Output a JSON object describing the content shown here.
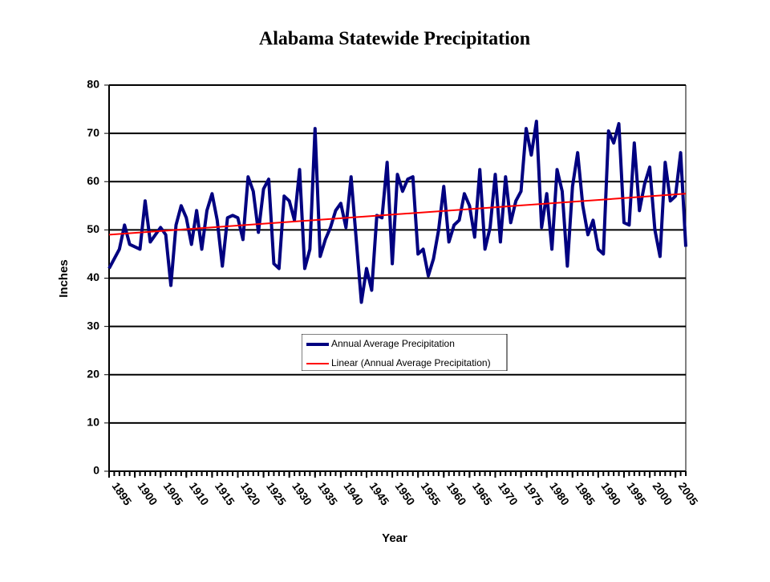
{
  "chart_data": {
    "type": "line",
    "title": "Alabama Statewide Precipitation",
    "x_label": "Year",
    "y_label": "Inches",
    "xlim": [
      1895,
      2007
    ],
    "xticks": [
      1895,
      1900,
      1905,
      1910,
      1915,
      1920,
      1925,
      1930,
      1935,
      1940,
      1945,
      1950,
      1955,
      1960,
      1965,
      1970,
      1975,
      1980,
      1985,
      1990,
      1995,
      2000,
      2005
    ],
    "ylim": [
      0,
      80
    ],
    "yticks": [
      0,
      10,
      20,
      30,
      40,
      50,
      60,
      70,
      80
    ],
    "grid": true,
    "series": [
      {
        "name": "Annual Average Precipitation",
        "color": "#000080",
        "x": [
          1895,
          1896,
          1897,
          1898,
          1899,
          1900,
          1901,
          1902,
          1903,
          1904,
          1905,
          1906,
          1907,
          1908,
          1909,
          1910,
          1911,
          1912,
          1913,
          1914,
          1915,
          1916,
          1917,
          1918,
          1919,
          1920,
          1921,
          1922,
          1923,
          1924,
          1925,
          1926,
          1927,
          1928,
          1929,
          1930,
          1931,
          1932,
          1933,
          1934,
          1935,
          1936,
          1937,
          1938,
          1939,
          1940,
          1941,
          1942,
          1943,
          1944,
          1945,
          1946,
          1947,
          1948,
          1949,
          1950,
          1951,
          1952,
          1953,
          1954,
          1955,
          1956,
          1957,
          1958,
          1959,
          1960,
          1961,
          1962,
          1963,
          1964,
          1965,
          1966,
          1967,
          1968,
          1969,
          1970,
          1971,
          1972,
          1973,
          1974,
          1975,
          1976,
          1977,
          1978,
          1979,
          1980,
          1981,
          1982,
          1983,
          1984,
          1985,
          1986,
          1987,
          1988,
          1989,
          1990,
          1991,
          1992,
          1993,
          1994,
          1995,
          1996,
          1997,
          1998,
          1999,
          2000,
          2001,
          2002,
          2003,
          2004,
          2005,
          2006,
          2007
        ],
        "values": [
          42,
          44,
          46,
          51,
          47,
          46.5,
          46,
          56,
          47.5,
          49,
          50.5,
          49,
          38.5,
          51,
          55,
          52.5,
          47,
          54,
          46,
          54,
          57.5,
          52,
          42.5,
          52.5,
          53,
          52.5,
          48,
          61,
          58,
          49.5,
          58.5,
          60.5,
          43,
          42,
          57,
          56,
          52,
          62.5,
          42,
          46,
          71,
          44.5,
          48,
          50.5,
          54,
          55.5,
          50.5,
          61,
          48,
          35,
          42,
          37.5,
          53,
          52.5,
          64,
          43,
          61.5,
          58,
          60.5,
          61,
          45,
          46,
          40.5,
          44,
          50,
          59,
          47.5,
          51,
          52,
          57.5,
          55,
          48.5,
          62.5,
          46,
          50.5,
          61.5,
          47.5,
          61,
          51.5,
          56,
          58,
          71,
          65.5,
          72.5,
          50.5,
          57.5,
          46,
          62.5,
          58,
          42.5,
          59,
          66,
          55,
          49,
          52,
          46,
          45,
          70.5,
          68,
          72,
          51.5,
          51,
          68,
          54,
          59.5,
          63,
          50,
          44.5,
          64,
          56,
          57,
          66,
          46.5
        ]
      },
      {
        "name": "Linear (Annual Average Precipitation)",
        "color": "#ff0000",
        "x": [
          1895,
          2007
        ],
        "values": [
          49,
          57.5
        ]
      }
    ]
  }
}
